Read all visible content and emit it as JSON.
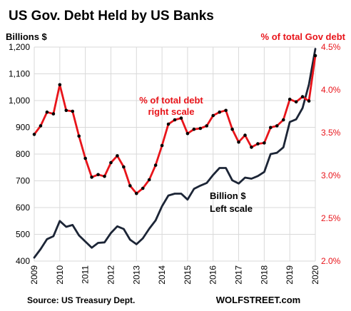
{
  "chart_data": {
    "type": "line",
    "title": "US Gov. Debt Held by US Banks",
    "left_unit": "Billions  $",
    "right_unit": "% of total Gov debt",
    "source": "Source: US Treasury Dept.",
    "brand": "WOLFSTREET.com",
    "grid": true,
    "x_ticks": [
      "2009",
      "2010",
      "2011",
      "2012",
      "2013",
      "2014",
      "2015",
      "2016",
      "2017",
      "2018",
      "2019",
      "2020"
    ],
    "y_left": {
      "min": 400,
      "max": 1200,
      "ticks": [
        "400",
        "500",
        "600",
        "700",
        "800",
        "900",
        "1,000",
        "1,100",
        "1,200"
      ]
    },
    "y_right": {
      "min": 2.0,
      "max": 4.5,
      "ticks": [
        "2.0%",
        "2.5%",
        "3.0%",
        "3.5%",
        "4.0%",
        "4.5%"
      ]
    },
    "series": [
      {
        "name": "Billion $",
        "axis": "left",
        "color": "#1c2536",
        "x": [
          2009.0,
          2009.25,
          2009.5,
          2009.75,
          2010.0,
          2010.25,
          2010.5,
          2010.75,
          2011.0,
          2011.25,
          2011.5,
          2011.75,
          2012.0,
          2012.25,
          2012.5,
          2012.75,
          2013.0,
          2013.25,
          2013.5,
          2013.75,
          2014.0,
          2014.25,
          2014.5,
          2014.75,
          2015.0,
          2015.25,
          2015.5,
          2015.75,
          2016.0,
          2016.25,
          2016.5,
          2016.75,
          2017.0,
          2017.25,
          2017.5,
          2017.75,
          2018.0,
          2018.25,
          2018.5,
          2018.75,
          2019.0,
          2019.25,
          2019.5,
          2019.75,
          2020.0
        ],
        "values": [
          413,
          445,
          482,
          493,
          550,
          528,
          535,
          496,
          473,
          450,
          468,
          470,
          505,
          530,
          520,
          480,
          463,
          485,
          521,
          552,
          605,
          645,
          652,
          652,
          630,
          670,
          682,
          692,
          722,
          748,
          748,
          702,
          690,
          712,
          708,
          718,
          733,
          800,
          805,
          825,
          920,
          930,
          972,
          1060,
          1193
        ]
      },
      {
        "name": "% of total debt",
        "axis": "right",
        "color": "#e8141a",
        "x": [
          2009.0,
          2009.25,
          2009.5,
          2009.75,
          2010.0,
          2010.25,
          2010.5,
          2010.75,
          2011.0,
          2011.25,
          2011.5,
          2011.75,
          2012.0,
          2012.25,
          2012.5,
          2012.75,
          2013.0,
          2013.25,
          2013.5,
          2013.75,
          2014.0,
          2014.25,
          2014.5,
          2014.75,
          2015.0,
          2015.25,
          2015.5,
          2015.75,
          2016.0,
          2016.25,
          2016.5,
          2016.75,
          2017.0,
          2017.25,
          2017.5,
          2017.75,
          2018.0,
          2018.25,
          2018.5,
          2018.75,
          2019.0,
          2019.25,
          2019.5,
          2019.75,
          2020.0
        ],
        "values": [
          3.48,
          3.58,
          3.74,
          3.72,
          4.06,
          3.76,
          3.75,
          3.46,
          3.2,
          2.98,
          3.01,
          2.99,
          3.15,
          3.23,
          3.1,
          2.88,
          2.79,
          2.85,
          2.95,
          3.12,
          3.35,
          3.6,
          3.65,
          3.67,
          3.49,
          3.54,
          3.55,
          3.58,
          3.7,
          3.74,
          3.76,
          3.54,
          3.39,
          3.47,
          3.33,
          3.37,
          3.38,
          3.56,
          3.58,
          3.65,
          3.89,
          3.86,
          3.92,
          3.87,
          4.4
        ]
      }
    ],
    "annotations": {
      "pct_line1": "% of total debt",
      "pct_line2": "right scale",
      "usd_line1": "Billion $",
      "usd_line2": "Left scale"
    }
  }
}
